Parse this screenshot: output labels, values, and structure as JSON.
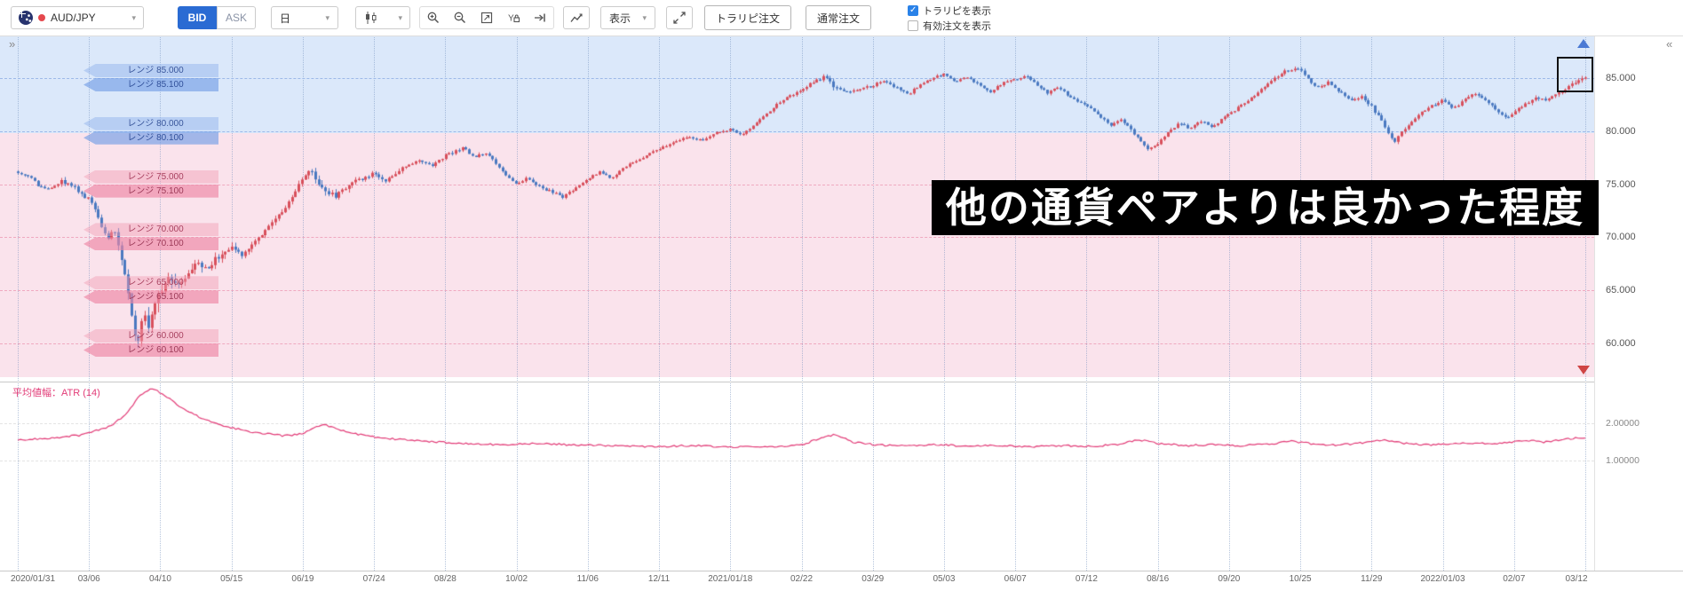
{
  "app": {
    "collapse_left": "»",
    "collapse_right": "«"
  },
  "toolbar": {
    "pair_label": "AUD/JPY",
    "pair_flag_icon": "australia-flag",
    "pair_status_dot_color": "#e5484d",
    "bid_label": "BID",
    "ask_label": "ASK",
    "bid_selected_color": "#2a6bd3",
    "timeframe_value": "日",
    "chart_type_icon": "candlestick",
    "icon_buttons": [
      "zoom-in",
      "zoom-out",
      "fit-chart",
      "y-axis-scale",
      "go-to-latest",
      "indicator",
      "expand"
    ],
    "display_label": "表示",
    "order_buttons": {
      "toraripi": "トラリピ注文",
      "normal": "通常注文"
    },
    "checkboxes": [
      {
        "label": "トラリピを表示",
        "checked": true
      },
      {
        "label": "有効注文を表示",
        "checked": false
      }
    ],
    "checkbox_checked_color": "#2a82e8"
  },
  "overlay": {
    "banner_text": "他の通貨ペアよりは良かった程度",
    "banner_bg": "#000000",
    "banner_fg": "#ffffff"
  },
  "chart_data": {
    "type": "candlestick",
    "symbol": "AUD/JPY",
    "price_type": "BID",
    "interval": "daily (日)",
    "x_tick_labels": [
      "2020/01/31",
      "03/06",
      "04/10",
      "05/15",
      "06/19",
      "07/24",
      "08/28",
      "10/02",
      "11/06",
      "12/11",
      "2021/01/18",
      "02/22",
      "03/29",
      "05/03",
      "06/07",
      "07/12",
      "08/16",
      "09/20",
      "10/25",
      "11/29",
      "2022/01/03",
      "02/07",
      "03/12"
    ],
    "y_axis_visible_range": [
      56.8,
      88.8
    ],
    "trade_zones": [
      {
        "name": "upper-blue-zone",
        "color": "#dbe8fa",
        "price_from": 79.8,
        "price_to": 88.8
      },
      {
        "name": "lower-pink-zone",
        "color": "#fae3ec",
        "price_from": 56.8,
        "price_to": 79.8
      }
    ],
    "range_orders": [
      {
        "price": 85.0,
        "tone": "blue",
        "labels": [
          "レンジ 85.000",
          "レンジ 85.100"
        ]
      },
      {
        "price": 80.0,
        "tone": "blue",
        "labels": [
          "レンジ 80.000",
          "レンジ 80.100"
        ]
      },
      {
        "price": 75.0,
        "tone": "pink",
        "labels": [
          "レンジ 75.000",
          "レンジ 75.100"
        ]
      },
      {
        "price": 70.0,
        "tone": "pink",
        "labels": [
          "レンジ 70.000",
          "レンジ 70.100"
        ]
      },
      {
        "price": 65.0,
        "tone": "pink",
        "labels": [
          "レンジ 65.000",
          "レンジ 65.100"
        ]
      },
      {
        "price": 60.0,
        "tone": "pink",
        "labels": [
          "レンジ 60.000",
          "レンジ 60.100"
        ]
      }
    ],
    "candle_colors": {
      "up": "#d8505c",
      "down": "#4a79c0"
    },
    "close_keypoints": [
      [
        0.0,
        76.2
      ],
      [
        0.006,
        75.8
      ],
      [
        0.013,
        74.9
      ],
      [
        0.02,
        74.4
      ],
      [
        0.028,
        75.3
      ],
      [
        0.036,
        74.7
      ],
      [
        0.0455,
        73.5
      ],
      [
        0.052,
        71.6
      ],
      [
        0.057,
        69.9
      ],
      [
        0.061,
        70.9
      ],
      [
        0.066,
        68.0
      ],
      [
        0.07,
        64.8
      ],
      [
        0.0735,
        61.5
      ],
      [
        0.077,
        60.3
      ],
      [
        0.08,
        63.6
      ],
      [
        0.0835,
        61.6
      ],
      [
        0.087,
        64.0
      ],
      [
        0.091,
        65.2
      ],
      [
        0.096,
        66.3
      ],
      [
        0.102,
        65.2
      ],
      [
        0.108,
        66.8
      ],
      [
        0.114,
        67.5
      ],
      [
        0.12,
        66.9
      ],
      [
        0.127,
        68.1
      ],
      [
        0.1365,
        69.0
      ],
      [
        0.143,
        68.3
      ],
      [
        0.15,
        69.5
      ],
      [
        0.158,
        70.7
      ],
      [
        0.165,
        71.9
      ],
      [
        0.172,
        73.1
      ],
      [
        0.178,
        74.5
      ],
      [
        0.1818,
        75.7
      ],
      [
        0.186,
        76.4
      ],
      [
        0.191,
        75.2
      ],
      [
        0.196,
        74.3
      ],
      [
        0.203,
        73.9
      ],
      [
        0.21,
        74.8
      ],
      [
        0.218,
        75.5
      ],
      [
        0.227,
        76.0
      ],
      [
        0.234,
        75.3
      ],
      [
        0.241,
        76.1
      ],
      [
        0.248,
        76.8
      ],
      [
        0.256,
        77.3
      ],
      [
        0.264,
        76.7
      ],
      [
        0.2727,
        77.7
      ],
      [
        0.284,
        78.4
      ],
      [
        0.291,
        77.5
      ],
      [
        0.298,
        78.0
      ],
      [
        0.305,
        76.9
      ],
      [
        0.312,
        75.8
      ],
      [
        0.3182,
        74.9
      ],
      [
        0.325,
        75.6
      ],
      [
        0.332,
        74.8
      ],
      [
        0.34,
        74.3
      ],
      [
        0.348,
        73.8
      ],
      [
        0.355,
        74.6
      ],
      [
        0.3636,
        75.5
      ],
      [
        0.371,
        76.2
      ],
      [
        0.378,
        75.5
      ],
      [
        0.386,
        76.5
      ],
      [
        0.394,
        77.2
      ],
      [
        0.402,
        77.8
      ],
      [
        0.4091,
        78.3
      ],
      [
        0.418,
        79.0
      ],
      [
        0.427,
        79.5
      ],
      [
        0.436,
        79.1
      ],
      [
        0.445,
        79.8
      ],
      [
        0.4545,
        80.2
      ],
      [
        0.462,
        79.6
      ],
      [
        0.468,
        80.4
      ],
      [
        0.475,
        81.3
      ],
      [
        0.483,
        82.4
      ],
      [
        0.491,
        83.2
      ],
      [
        0.5,
        83.9
      ],
      [
        0.507,
        84.6
      ],
      [
        0.514,
        85.1
      ],
      [
        0.52,
        84.3
      ],
      [
        0.527,
        83.6
      ],
      [
        0.5455,
        84.3
      ],
      [
        0.553,
        84.8
      ],
      [
        0.56,
        84.1
      ],
      [
        0.568,
        83.5
      ],
      [
        0.575,
        84.3
      ],
      [
        0.583,
        85.0
      ],
      [
        0.5909,
        85.4
      ],
      [
        0.598,
        84.7
      ],
      [
        0.605,
        85.1
      ],
      [
        0.613,
        84.4
      ],
      [
        0.62,
        83.7
      ],
      [
        0.628,
        84.5
      ],
      [
        0.6364,
        84.9
      ],
      [
        0.643,
        85.2
      ],
      [
        0.65,
        84.4
      ],
      [
        0.657,
        83.6
      ],
      [
        0.664,
        84.2
      ],
      [
        0.67,
        83.3
      ],
      [
        0.6818,
        82.4
      ],
      [
        0.69,
        81.4
      ],
      [
        0.697,
        80.6
      ],
      [
        0.703,
        81.2
      ],
      [
        0.71,
        80.1
      ],
      [
        0.716,
        79.2
      ],
      [
        0.721,
        78.3
      ],
      [
        0.7273,
        78.9
      ],
      [
        0.734,
        79.9
      ],
      [
        0.741,
        80.8
      ],
      [
        0.748,
        80.2
      ],
      [
        0.755,
        81.0
      ],
      [
        0.762,
        80.4
      ],
      [
        0.768,
        81.1
      ],
      [
        0.7727,
        81.6
      ],
      [
        0.78,
        82.4
      ],
      [
        0.788,
        83.3
      ],
      [
        0.795,
        84.1
      ],
      [
        0.802,
        85.0
      ],
      [
        0.808,
        85.6
      ],
      [
        0.8182,
        85.9
      ],
      [
        0.824,
        84.8
      ],
      [
        0.83,
        84.0
      ],
      [
        0.836,
        84.6
      ],
      [
        0.843,
        83.7
      ],
      [
        0.85,
        82.8
      ],
      [
        0.857,
        83.3
      ],
      [
        0.8636,
        82.3
      ],
      [
        0.869,
        81.1
      ],
      [
        0.874,
        79.9
      ],
      [
        0.878,
        78.9
      ],
      [
        0.884,
        80.1
      ],
      [
        0.89,
        81.0
      ],
      [
        0.896,
        81.8
      ],
      [
        0.902,
        82.4
      ],
      [
        0.9091,
        82.9
      ],
      [
        0.916,
        82.1
      ],
      [
        0.923,
        83.0
      ],
      [
        0.93,
        83.6
      ],
      [
        0.937,
        82.8
      ],
      [
        0.944,
        81.9
      ],
      [
        0.95,
        81.3
      ],
      [
        0.9545,
        81.8
      ],
      [
        0.961,
        82.5
      ],
      [
        0.968,
        83.2
      ],
      [
        0.975,
        82.8
      ],
      [
        0.982,
        83.5
      ],
      [
        0.989,
        84.2
      ],
      [
        0.995,
        84.8
      ],
      [
        1.0,
        85.1
      ]
    ],
    "highlight_box": {
      "t_range": [
        0.982,
        1.003
      ],
      "price_range": [
        84.0,
        87.0
      ]
    },
    "scroll_arrows": {
      "up_color": "#4a79d4",
      "down_color": "#cf4444"
    },
    "indicator": {
      "label": "平均値幅：ATR (14)",
      "type": "line",
      "color": "#e23b77",
      "axis_ticks": [
        "2.00000",
        "1.00000"
      ],
      "keypoints": [
        [
          0.0,
          1.55
        ],
        [
          0.02,
          1.6
        ],
        [
          0.04,
          1.68
        ],
        [
          0.058,
          1.9
        ],
        [
          0.068,
          2.2
        ],
        [
          0.077,
          2.7
        ],
        [
          0.085,
          2.95
        ],
        [
          0.092,
          2.8
        ],
        [
          0.1,
          2.55
        ],
        [
          0.11,
          2.3
        ],
        [
          0.12,
          2.08
        ],
        [
          0.132,
          1.92
        ],
        [
          0.145,
          1.8
        ],
        [
          0.158,
          1.72
        ],
        [
          0.17,
          1.66
        ],
        [
          0.182,
          1.72
        ],
        [
          0.191,
          1.9
        ],
        [
          0.196,
          1.97
        ],
        [
          0.203,
          1.85
        ],
        [
          0.215,
          1.72
        ],
        [
          0.23,
          1.62
        ],
        [
          0.248,
          1.55
        ],
        [
          0.265,
          1.5
        ],
        [
          0.285,
          1.46
        ],
        [
          0.305,
          1.43
        ],
        [
          0.33,
          1.46
        ],
        [
          0.355,
          1.42
        ],
        [
          0.38,
          1.4
        ],
        [
          0.405,
          1.37
        ],
        [
          0.43,
          1.4
        ],
        [
          0.455,
          1.36
        ],
        [
          0.48,
          1.38
        ],
        [
          0.5,
          1.41
        ],
        [
          0.513,
          1.63
        ],
        [
          0.522,
          1.7
        ],
        [
          0.532,
          1.5
        ],
        [
          0.548,
          1.42
        ],
        [
          0.565,
          1.4
        ],
        [
          0.585,
          1.43
        ],
        [
          0.605,
          1.39
        ],
        [
          0.625,
          1.41
        ],
        [
          0.645,
          1.37
        ],
        [
          0.665,
          1.4
        ],
        [
          0.685,
          1.38
        ],
        [
          0.702,
          1.44
        ],
        [
          0.715,
          1.56
        ],
        [
          0.728,
          1.46
        ],
        [
          0.745,
          1.4
        ],
        [
          0.762,
          1.43
        ],
        [
          0.78,
          1.4
        ],
        [
          0.798,
          1.44
        ],
        [
          0.812,
          1.52
        ],
        [
          0.826,
          1.45
        ],
        [
          0.84,
          1.41
        ],
        [
          0.855,
          1.46
        ],
        [
          0.87,
          1.56
        ],
        [
          0.884,
          1.47
        ],
        [
          0.898,
          1.42
        ],
        [
          0.912,
          1.44
        ],
        [
          0.926,
          1.47
        ],
        [
          0.94,
          1.44
        ],
        [
          0.952,
          1.5
        ],
        [
          0.963,
          1.54
        ],
        [
          0.974,
          1.5
        ],
        [
          0.985,
          1.56
        ],
        [
          1.0,
          1.62
        ]
      ]
    }
  }
}
